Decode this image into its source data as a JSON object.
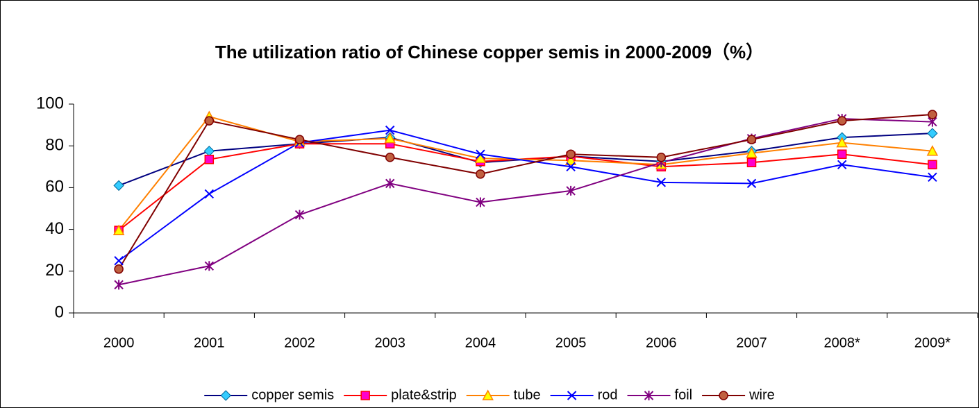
{
  "chart_data": {
    "type": "line",
    "title": "The utilization ratio of Chinese copper semis in 2000-2009（%）",
    "categories": [
      "2000",
      "2001",
      "2002",
      "2003",
      "2004",
      "2005",
      "2006",
      "2007",
      "2008*",
      "2009*"
    ],
    "ylim": [
      0,
      100
    ],
    "yticks": [
      0,
      20,
      40,
      60,
      80,
      100
    ],
    "grid": false,
    "legend": "bottom",
    "series": [
      {
        "name": "copper semis",
        "color": "#000080",
        "marker": "diamond",
        "marker_fill": "#33ccff",
        "values": [
          61,
          77.5,
          81,
          84,
          72,
          75,
          72.5,
          77.5,
          84,
          86
        ]
      },
      {
        "name": "plate&strip",
        "color": "#ff0000",
        "marker": "square",
        "marker_fill": "#ff00cc",
        "values": [
          39.5,
          73.5,
          81,
          81,
          72.5,
          75,
          70,
          72,
          76,
          71
        ]
      },
      {
        "name": "tube",
        "color": "#ff8000",
        "marker": "triangle",
        "marker_fill": "#ffff00",
        "values": [
          39.5,
          94,
          82,
          83.5,
          74,
          73,
          71,
          76.5,
          81.5,
          77.5
        ]
      },
      {
        "name": "rod",
        "color": "#0000ff",
        "marker": "x",
        "marker_fill": "#0000ff",
        "values": [
          25,
          57,
          81.5,
          87.5,
          76,
          70,
          62.5,
          62,
          71,
          65
        ]
      },
      {
        "name": "foil",
        "color": "#800080",
        "marker": "star",
        "marker_fill": "#800080",
        "values": [
          13.5,
          22.5,
          47,
          62,
          53,
          58.5,
          72,
          83.5,
          93,
          91.5
        ]
      },
      {
        "name": "wire",
        "color": "#800000",
        "marker": "circle",
        "marker_fill": "#c06040",
        "values": [
          21,
          92,
          83,
          74.5,
          66.5,
          76,
          74.5,
          83,
          92,
          95
        ]
      }
    ]
  }
}
